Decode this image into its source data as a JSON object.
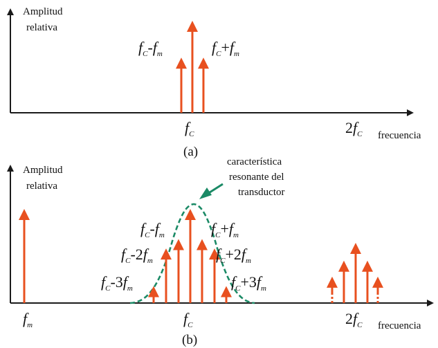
{
  "colors": {
    "axis": "#1a1a1a",
    "arrow": "#e8501f",
    "resonance": "#1b8a66"
  },
  "panel_a": {
    "ylabel_line1": "Amplitud",
    "ylabel_line2": "relativa",
    "xlabel": "frecuencia",
    "caption": "(a)"
  },
  "panel_b": {
    "ylabel_line1": "Amplitud",
    "ylabel_line2": "relativa",
    "xlabel": "frecuencia",
    "caption": "(b)",
    "annotation_line1": "característica",
    "annotation_line2": "resonante del",
    "annotation_line3": "transductor"
  },
  "chart_data": [
    {
      "type": "bar",
      "caption": "(a)",
      "xlabel": "frecuencia",
      "ylabel": "Amplitud relativa",
      "x_ticks": [
        "fC",
        "2fC"
      ],
      "components": [
        {
          "label": "fC-fm",
          "relative_amplitude": 0.6
        },
        {
          "label": "fC",
          "relative_amplitude": 1.0
        },
        {
          "label": "fC+fm",
          "relative_amplitude": 0.6
        }
      ]
    },
    {
      "type": "bar",
      "caption": "(b)",
      "xlabel": "frecuencia",
      "ylabel": "Amplitud relativa",
      "x_ticks": [
        "fm",
        "fC",
        "2fC"
      ],
      "components": [
        {
          "label": "fm",
          "relative_amplitude": 1.0
        },
        {
          "label": "fC-3fm",
          "relative_amplitude": 0.18
        },
        {
          "label": "fC-2fm",
          "relative_amplitude": 0.58
        },
        {
          "label": "fC-fm",
          "relative_amplitude": 0.68
        },
        {
          "label": "fC",
          "relative_amplitude": 1.0
        },
        {
          "label": "fC+fm",
          "relative_amplitude": 0.68
        },
        {
          "label": "fC+2fm",
          "relative_amplitude": 0.58
        },
        {
          "label": "fC+3fm",
          "relative_amplitude": 0.18
        }
      ],
      "harmonic_cluster_at_2fC": [
        0.28,
        0.45,
        0.64,
        0.45,
        0.28
      ]
    }
  ]
}
